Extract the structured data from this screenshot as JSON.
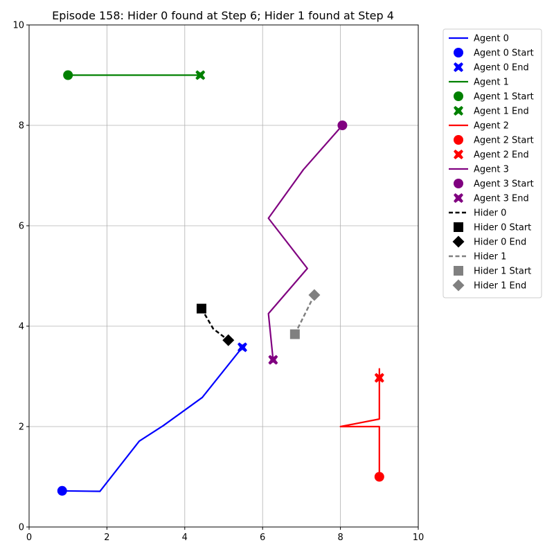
{
  "chart_data": {
    "type": "line",
    "title": "Episode 158: Hider 0 found at Step 6; Hider 1 found at Step 4",
    "xlabel": "",
    "ylabel": "",
    "xlim": [
      0,
      10
    ],
    "ylim": [
      0,
      10
    ],
    "xticks": [
      "0",
      "2",
      "4",
      "6",
      "8",
      "10"
    ],
    "yticks": [
      "0",
      "2",
      "4",
      "6",
      "8",
      "10"
    ],
    "grid": true,
    "legend_placement": "outside upper right",
    "series": [
      {
        "name": "Agent 0",
        "color": "#0000ff",
        "style": "solid",
        "start_marker": "circle",
        "end_marker": "x",
        "points": [
          [
            0.85,
            0.72
          ],
          [
            1.82,
            0.71
          ],
          [
            2.83,
            1.71
          ],
          [
            3.45,
            2.02
          ],
          [
            4.45,
            2.58
          ],
          [
            5.48,
            3.58
          ]
        ]
      },
      {
        "name": "Agent 1",
        "color": "#008000",
        "style": "solid",
        "start_marker": "circle",
        "end_marker": "x",
        "points": [
          [
            1.0,
            9.0
          ],
          [
            4.4,
            9.0
          ]
        ]
      },
      {
        "name": "Agent 2",
        "color": "#ff0000",
        "style": "solid",
        "start_marker": "circle",
        "end_marker": "x",
        "points": [
          [
            9.0,
            1.0
          ],
          [
            9.0,
            2.0
          ],
          [
            8.0,
            2.0
          ],
          [
            9.0,
            2.15
          ],
          [
            9.0,
            3.15
          ],
          [
            9.0,
            2.97
          ]
        ]
      },
      {
        "name": "Agent 3",
        "color": "#800080",
        "style": "solid",
        "start_marker": "circle",
        "end_marker": "x",
        "points": [
          [
            8.05,
            8.0
          ],
          [
            7.05,
            7.12
          ],
          [
            6.15,
            6.15
          ],
          [
            7.15,
            5.15
          ],
          [
            6.15,
            4.25
          ],
          [
            6.27,
            3.33
          ]
        ]
      },
      {
        "name": "Hider 0",
        "color": "#000000",
        "style": "dashed",
        "start_marker": "square",
        "end_marker": "diamond",
        "points": [
          [
            4.43,
            4.35
          ],
          [
            4.73,
            3.95
          ],
          [
            5.12,
            3.72
          ]
        ]
      },
      {
        "name": "Hider 1",
        "color": "#808080",
        "style": "dashed",
        "start_marker": "square",
        "end_marker": "diamond",
        "points": [
          [
            6.83,
            3.84
          ],
          [
            7.33,
            4.62
          ]
        ]
      }
    ],
    "legend": [
      "Agent 0",
      "Agent 0 Start",
      "Agent 0 End",
      "Agent 1",
      "Agent 1 Start",
      "Agent 1 End",
      "Agent 2",
      "Agent 2 Start",
      "Agent 2 End",
      "Agent 3",
      "Agent 3 Start",
      "Agent 3 End",
      "Hider 0",
      "Hider 0 Start",
      "Hider 0 End",
      "Hider 1",
      "Hider 1 Start",
      "Hider 1 End"
    ]
  }
}
